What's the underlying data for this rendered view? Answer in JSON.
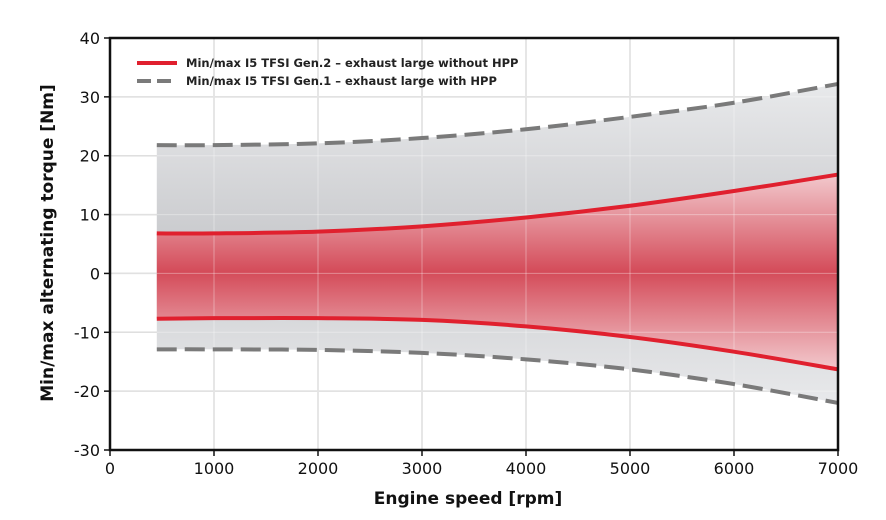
{
  "chart_data": {
    "type": "area",
    "xlabel": "Engine speed [rpm]",
    "ylabel": "Min/max alternating torque [Nm]",
    "xlim": [
      0,
      7000
    ],
    "ylim": [
      -30,
      40
    ],
    "xticks": [
      0,
      1000,
      2000,
      3000,
      4000,
      5000,
      6000,
      7000
    ],
    "yticks": [
      -30,
      -20,
      -10,
      0,
      10,
      20,
      30,
      40
    ],
    "grid": true,
    "legend_position": "top-left",
    "series": [
      {
        "name": "Min/max I5 TFSI Gen.2 – exhaust large without HPP",
        "style": "solid",
        "color": "#e0202e",
        "fill_color": "#d9404d",
        "x": [
          450,
          1000,
          2000,
          3000,
          4000,
          5000,
          6000,
          7000
        ],
        "max": [
          6.8,
          6.8,
          7.1,
          8.0,
          9.5,
          11.5,
          14.0,
          16.8
        ],
        "min": [
          -7.7,
          -7.6,
          -7.6,
          -7.9,
          -9.0,
          -10.8,
          -13.3,
          -16.3
        ]
      },
      {
        "name": "Min/max I5 TFSI Gen.1 – exhaust large with HPP",
        "style": "dashed",
        "color": "#7a7a7a",
        "fill_color": "#c8c8cc",
        "x": [
          450,
          1000,
          2000,
          3000,
          4000,
          5000,
          6000,
          7000
        ],
        "max": [
          21.8,
          21.8,
          22.1,
          23.0,
          24.5,
          26.6,
          29.0,
          32.2
        ],
        "min": [
          -12.9,
          -12.9,
          -13.0,
          -13.5,
          -14.6,
          -16.3,
          -18.8,
          -22.0
        ]
      }
    ]
  }
}
